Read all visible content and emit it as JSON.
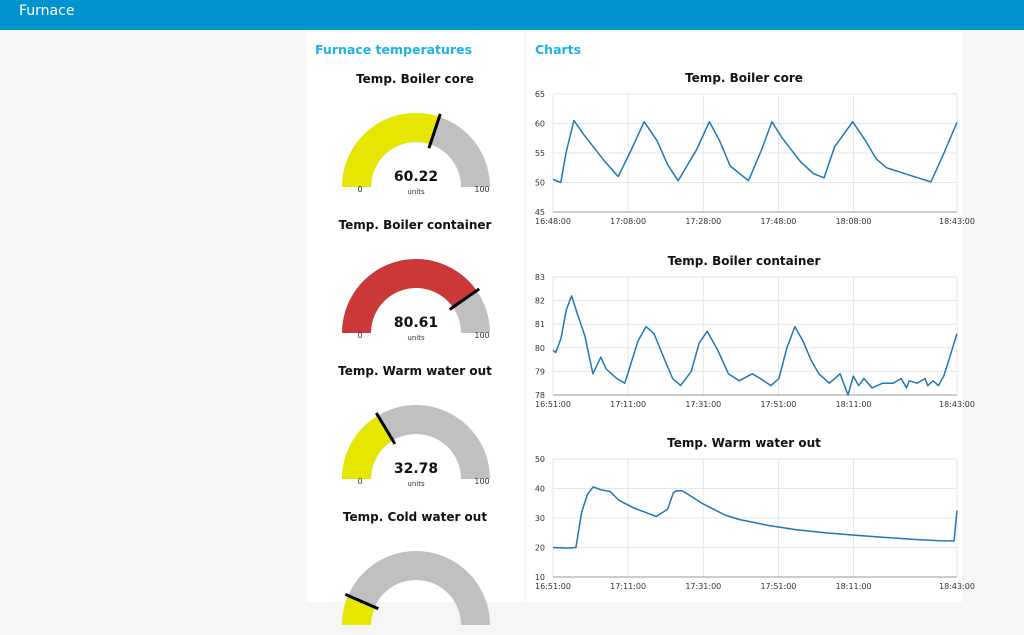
{
  "app": {
    "title": "Furnace"
  },
  "gauges_group": {
    "title": "Furnace temperatures",
    "gauges": [
      {
        "title": "Temp. Boiler core",
        "value": "60.22",
        "fraction": 0.6022,
        "units": "units",
        "min": "0",
        "max": "100",
        "color": "#e6e600"
      },
      {
        "title": "Temp. Boiler container",
        "value": "80.61",
        "fraction": 0.8061,
        "units": "units",
        "min": "0",
        "max": "100",
        "color": "#ca3838"
      },
      {
        "title": "Temp. Warm water out",
        "value": "32.78",
        "fraction": 0.3278,
        "units": "units",
        "min": "0",
        "max": "100",
        "color": "#e6e600"
      },
      {
        "title": "Temp. Cold water out",
        "value": "",
        "fraction": 0.13,
        "units": "",
        "min": "",
        "max": "",
        "color": "#e6e600"
      }
    ]
  },
  "charts_group": {
    "title": "Charts"
  },
  "chart_data": [
    {
      "type": "line",
      "title": "Temp. Boiler core",
      "xlabel": "",
      "ylabel": "",
      "ylim": [
        45,
        65
      ],
      "yticks": [
        "45",
        "50",
        "55",
        "60",
        "65"
      ],
      "xticks": [
        "16:48:00",
        "17:08:00",
        "17:28:00",
        "17:48:00",
        "18:08:00",
        "18:43:00"
      ],
      "grid": true,
      "series": [
        {
          "color": "#1f77b4",
          "x": [
            0,
            3,
            5,
            8,
            12,
            20,
            25,
            30,
            35,
            40,
            44,
            48,
            55,
            60,
            64,
            68,
            75,
            80,
            84,
            88,
            95,
            100,
            104,
            108,
            115,
            120,
            124,
            128,
            135,
            140,
            145,
            150,
            155
          ],
          "y": [
            50.5,
            50.0,
            55.0,
            60.5,
            58.0,
            53.5,
            51.0,
            55.5,
            60.3,
            57.0,
            53.0,
            50.3,
            55.5,
            60.3,
            57.0,
            52.8,
            50.3,
            55.5,
            60.3,
            57.5,
            53.5,
            51.5,
            50.8,
            56.0,
            60.3,
            57.0,
            54.0,
            52.5,
            51.5,
            50.8,
            50.1,
            55.0,
            60.2
          ]
        }
      ]
    },
    {
      "type": "line",
      "title": "Temp. Boiler container",
      "xlabel": "",
      "ylabel": "",
      "ylim": [
        78,
        83
      ],
      "yticks": [
        "78",
        "79",
        "80",
        "81",
        "82",
        "83"
      ],
      "xticks": [
        "16:51:00",
        "17:11:00",
        "17:31:00",
        "17:51:00",
        "18:11:00",
        "18:43:00"
      ],
      "grid": true,
      "series": [
        {
          "color": "#1f77b4",
          "x": [
            0,
            1,
            3,
            5,
            7,
            9,
            12,
            15,
            18,
            20,
            22,
            24,
            27,
            32,
            35,
            38,
            42,
            45,
            48,
            52,
            55,
            58,
            62,
            66,
            70,
            75,
            78,
            82,
            85,
            88,
            91,
            94,
            97,
            100,
            104,
            108,
            111,
            113,
            115,
            117,
            120,
            124,
            128,
            131,
            133,
            134,
            137,
            140,
            141,
            143,
            145,
            147,
            149,
            152
          ],
          "y": [
            79.9,
            79.8,
            80.4,
            81.6,
            82.2,
            81.5,
            80.5,
            78.9,
            79.6,
            79.1,
            78.9,
            78.7,
            78.5,
            80.3,
            80.9,
            80.6,
            79.5,
            78.7,
            78.4,
            79.0,
            80.2,
            80.7,
            79.9,
            78.9,
            78.6,
            78.9,
            78.7,
            78.4,
            78.7,
            80.0,
            80.9,
            80.3,
            79.5,
            78.9,
            78.5,
            78.9,
            78.0,
            78.8,
            78.4,
            78.7,
            78.3,
            78.5,
            78.5,
            78.7,
            78.3,
            78.6,
            78.5,
            78.7,
            78.4,
            78.6,
            78.4,
            78.8,
            79.5,
            80.6
          ]
        }
      ]
    },
    {
      "type": "line",
      "title": "Temp. Warm water out",
      "xlabel": "",
      "ylabel": "",
      "ylim": [
        10,
        50
      ],
      "yticks": [
        "10",
        "20",
        "30",
        "40",
        "50"
      ],
      "xticks": [
        "16:51:00",
        "17:11:00",
        "17:31:00",
        "17:51:00",
        "18:11:00",
        "18:43:00"
      ],
      "grid": true,
      "series": [
        {
          "color": "#1f77b4",
          "x": [
            0,
            5,
            8,
            10,
            12,
            14,
            15,
            17,
            20,
            23,
            28,
            32,
            36,
            40,
            42,
            43,
            45,
            48,
            52,
            56,
            60,
            65,
            70,
            75,
            85,
            95,
            105,
            115,
            125,
            135,
            140,
            141
          ],
          "y": [
            20.0,
            19.8,
            20.0,
            32.0,
            38.0,
            40.5,
            40.2,
            39.5,
            39.0,
            36.0,
            33.5,
            32.0,
            30.5,
            33.0,
            38.5,
            39.2,
            39.3,
            37.5,
            35.0,
            33.0,
            31.0,
            29.5,
            28.5,
            27.5,
            26.0,
            25.0,
            24.2,
            23.5,
            22.8,
            22.3,
            22.2,
            32.5
          ]
        }
      ]
    }
  ]
}
